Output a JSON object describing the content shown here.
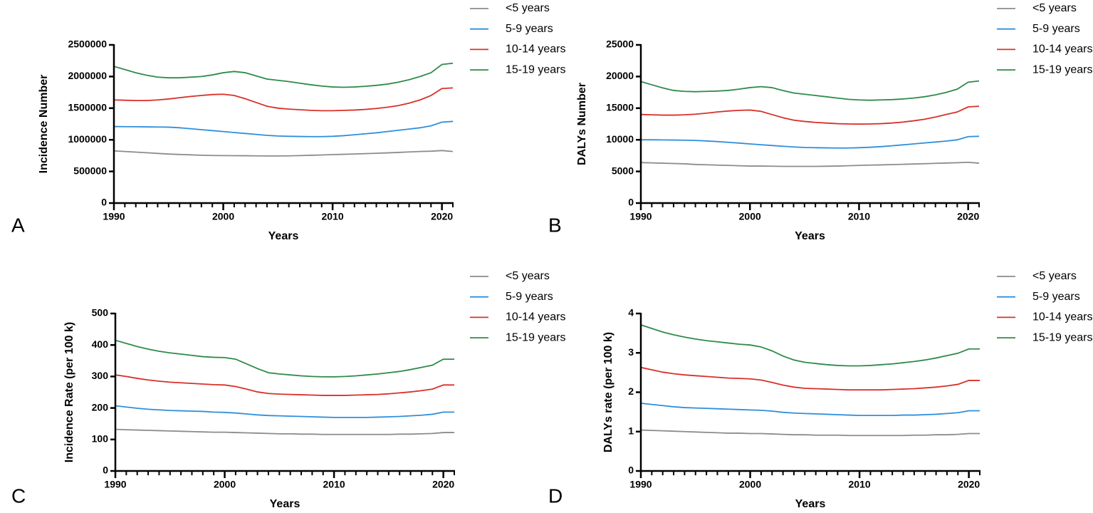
{
  "chart_data": [
    {
      "type": "line",
      "panel_label": "A",
      "y_label": "Incidence Number",
      "x_label": "Years",
      "x": [
        1990,
        1991,
        1992,
        1993,
        1994,
        1995,
        1996,
        1997,
        1998,
        1999,
        2000,
        2001,
        2002,
        2003,
        2004,
        2005,
        2006,
        2007,
        2008,
        2009,
        2010,
        2011,
        2012,
        2013,
        2014,
        2015,
        2016,
        2017,
        2018,
        2019,
        2020,
        2021
      ],
      "xlim": [
        1990,
        2021
      ],
      "xticks": [
        1990,
        2000,
        2010,
        2020
      ],
      "ylim": [
        0,
        2500000
      ],
      "yticks": [
        0,
        500000,
        1000000,
        1500000,
        2000000,
        2500000
      ],
      "series": [
        {
          "name": "<5 years",
          "color": "#8c8c8c",
          "values": [
            825000,
            815000,
            805000,
            795000,
            785000,
            775000,
            768000,
            762000,
            756000,
            752000,
            750000,
            749000,
            748000,
            746000,
            745000,
            745000,
            746000,
            750000,
            755000,
            760000,
            766000,
            771000,
            776000,
            781000,
            787000,
            793000,
            800000,
            808000,
            815000,
            820000,
            830000,
            815000
          ]
        },
        {
          "name": "5-9 years",
          "color": "#2f8fdb",
          "values": [
            1210000,
            1208000,
            1206000,
            1204000,
            1202000,
            1200000,
            1190000,
            1175000,
            1160000,
            1145000,
            1130000,
            1115000,
            1100000,
            1085000,
            1070000,
            1060000,
            1055000,
            1052000,
            1050000,
            1050000,
            1055000,
            1065000,
            1080000,
            1095000,
            1110000,
            1130000,
            1150000,
            1170000,
            1190000,
            1220000,
            1280000,
            1290000
          ]
        },
        {
          "name": "10-14 years",
          "color": "#d9302a",
          "values": [
            1630000,
            1625000,
            1620000,
            1620000,
            1630000,
            1645000,
            1665000,
            1685000,
            1700000,
            1715000,
            1720000,
            1700000,
            1650000,
            1590000,
            1530000,
            1500000,
            1485000,
            1475000,
            1465000,
            1460000,
            1460000,
            1465000,
            1470000,
            1480000,
            1495000,
            1515000,
            1540000,
            1580000,
            1630000,
            1700000,
            1810000,
            1820000
          ]
        },
        {
          "name": "15-19 years",
          "color": "#2e8b4a",
          "values": [
            2160000,
            2110000,
            2060000,
            2020000,
            1990000,
            1980000,
            1980000,
            1990000,
            2000000,
            2025000,
            2060000,
            2080000,
            2060000,
            2010000,
            1960000,
            1940000,
            1920000,
            1895000,
            1870000,
            1850000,
            1835000,
            1830000,
            1835000,
            1845000,
            1860000,
            1880000,
            1910000,
            1950000,
            2000000,
            2060000,
            2190000,
            2210000
          ]
        }
      ]
    },
    {
      "type": "line",
      "panel_label": "B",
      "y_label": "DALYs Number",
      "x_label": "Years",
      "x": [
        1990,
        1991,
        1992,
        1993,
        1994,
        1995,
        1996,
        1997,
        1998,
        1999,
        2000,
        2001,
        2002,
        2003,
        2004,
        2005,
        2006,
        2007,
        2008,
        2009,
        2010,
        2011,
        2012,
        2013,
        2014,
        2015,
        2016,
        2017,
        2018,
        2019,
        2020,
        2021
      ],
      "xlim": [
        1990,
        2021
      ],
      "xticks": [
        1990,
        2000,
        2010,
        2020
      ],
      "ylim": [
        0,
        25000
      ],
      "yticks": [
        0,
        5000,
        10000,
        15000,
        20000,
        25000
      ],
      "series": [
        {
          "name": "<5 years",
          "color": "#8c8c8c",
          "values": [
            6400,
            6350,
            6300,
            6250,
            6200,
            6100,
            6050,
            6000,
            5950,
            5900,
            5850,
            5850,
            5830,
            5800,
            5800,
            5800,
            5800,
            5820,
            5850,
            5900,
            5950,
            6000,
            6030,
            6080,
            6120,
            6170,
            6220,
            6280,
            6330,
            6380,
            6450,
            6300
          ]
        },
        {
          "name": "5-9 years",
          "color": "#2f8fdb",
          "values": [
            10000,
            10000,
            9980,
            9960,
            9940,
            9900,
            9820,
            9720,
            9600,
            9480,
            9350,
            9220,
            9100,
            8980,
            8870,
            8780,
            8750,
            8720,
            8700,
            8700,
            8750,
            8820,
            8920,
            9050,
            9200,
            9350,
            9500,
            9650,
            9800,
            10000,
            10500,
            10550
          ]
        },
        {
          "name": "10-14 years",
          "color": "#d9302a",
          "values": [
            14000,
            13950,
            13900,
            13900,
            13950,
            14050,
            14200,
            14400,
            14550,
            14650,
            14700,
            14500,
            14000,
            13500,
            13100,
            12900,
            12750,
            12650,
            12550,
            12500,
            12480,
            12500,
            12550,
            12650,
            12800,
            13000,
            13250,
            13600,
            14000,
            14400,
            15200,
            15300
          ]
        },
        {
          "name": "15-19 years",
          "color": "#2e8b4a",
          "values": [
            19200,
            18700,
            18200,
            17800,
            17650,
            17600,
            17650,
            17700,
            17800,
            18000,
            18250,
            18400,
            18250,
            17800,
            17400,
            17200,
            17000,
            16800,
            16600,
            16400,
            16300,
            16250,
            16300,
            16350,
            16450,
            16600,
            16800,
            17100,
            17500,
            18000,
            19100,
            19300
          ]
        }
      ]
    },
    {
      "type": "line",
      "panel_label": "C",
      "y_label": "Incidence Rate (per 100 k)",
      "x_label": "Years",
      "x": [
        1990,
        1991,
        1992,
        1993,
        1994,
        1995,
        1996,
        1997,
        1998,
        1999,
        2000,
        2001,
        2002,
        2003,
        2004,
        2005,
        2006,
        2007,
        2008,
        2009,
        2010,
        2011,
        2012,
        2013,
        2014,
        2015,
        2016,
        2017,
        2018,
        2019,
        2020,
        2021
      ],
      "xlim": [
        1990,
        2021
      ],
      "xticks": [
        1990,
        2000,
        2010,
        2020
      ],
      "ylim": [
        0,
        500
      ],
      "yticks": [
        0,
        100,
        200,
        300,
        400,
        500
      ],
      "series": [
        {
          "name": "<5 years",
          "color": "#8c8c8c",
          "values": [
            132,
            131,
            130,
            129,
            128,
            127,
            126,
            125,
            124,
            123,
            123,
            122,
            121,
            120,
            119,
            118,
            118,
            117,
            117,
            116,
            116,
            116,
            116,
            116,
            116,
            116,
            117,
            117,
            118,
            119,
            122,
            122
          ]
        },
        {
          "name": "5-9 years",
          "color": "#2f8fdb",
          "values": [
            207,
            203,
            199,
            196,
            194,
            192,
            191,
            190,
            189,
            187,
            186,
            184,
            181,
            178,
            176,
            175,
            174,
            173,
            172,
            171,
            170,
            170,
            170,
            170,
            171,
            172,
            173,
            175,
            177,
            180,
            187,
            187
          ]
        },
        {
          "name": "10-14 years",
          "color": "#d9302a",
          "values": [
            305,
            300,
            294,
            289,
            285,
            282,
            280,
            278,
            276,
            274,
            273,
            268,
            260,
            251,
            246,
            244,
            243,
            242,
            241,
            240,
            240,
            240,
            241,
            242,
            243,
            245,
            248,
            251,
            255,
            260,
            273,
            273
          ]
        },
        {
          "name": "15-19 years",
          "color": "#2e8b4a",
          "values": [
            415,
            405,
            395,
            387,
            380,
            375,
            371,
            367,
            363,
            361,
            360,
            355,
            340,
            325,
            312,
            308,
            305,
            302,
            300,
            299,
            299,
            300,
            302,
            305,
            308,
            312,
            316,
            322,
            329,
            336,
            355,
            355
          ]
        }
      ]
    },
    {
      "type": "line",
      "panel_label": "D",
      "y_label": "DALYs rate (per 100 k)",
      "x_label": "Years",
      "x": [
        1990,
        1991,
        1992,
        1993,
        1994,
        1995,
        1996,
        1997,
        1998,
        1999,
        2000,
        2001,
        2002,
        2003,
        2004,
        2005,
        2006,
        2007,
        2008,
        2009,
        2010,
        2011,
        2012,
        2013,
        2014,
        2015,
        2016,
        2017,
        2018,
        2019,
        2020,
        2021
      ],
      "xlim": [
        1990,
        2021
      ],
      "xticks": [
        1990,
        2000,
        2010,
        2020
      ],
      "ylim": [
        0,
        4
      ],
      "yticks": [
        0,
        1,
        2,
        3,
        4
      ],
      "series": [
        {
          "name": "<5 years",
          "color": "#8c8c8c",
          "values": [
            1.04,
            1.03,
            1.02,
            1.01,
            1.0,
            0.99,
            0.98,
            0.97,
            0.96,
            0.96,
            0.95,
            0.95,
            0.94,
            0.93,
            0.92,
            0.92,
            0.91,
            0.91,
            0.91,
            0.9,
            0.9,
            0.9,
            0.9,
            0.9,
            0.9,
            0.91,
            0.91,
            0.92,
            0.92,
            0.93,
            0.95,
            0.95
          ]
        },
        {
          "name": "5-9 years",
          "color": "#2f8fdb",
          "values": [
            1.72,
            1.69,
            1.66,
            1.63,
            1.61,
            1.6,
            1.59,
            1.58,
            1.57,
            1.56,
            1.55,
            1.54,
            1.52,
            1.49,
            1.47,
            1.46,
            1.45,
            1.44,
            1.43,
            1.42,
            1.41,
            1.41,
            1.41,
            1.41,
            1.42,
            1.42,
            1.43,
            1.44,
            1.46,
            1.48,
            1.53,
            1.53
          ]
        },
        {
          "name": "10-14 years",
          "color": "#d9302a",
          "values": [
            2.63,
            2.57,
            2.51,
            2.47,
            2.44,
            2.42,
            2.4,
            2.38,
            2.36,
            2.35,
            2.34,
            2.31,
            2.25,
            2.18,
            2.13,
            2.1,
            2.09,
            2.08,
            2.07,
            2.06,
            2.06,
            2.06,
            2.06,
            2.07,
            2.08,
            2.09,
            2.11,
            2.13,
            2.16,
            2.2,
            2.3,
            2.3
          ]
        },
        {
          "name": "15-19 years",
          "color": "#2e8b4a",
          "values": [
            3.71,
            3.62,
            3.53,
            3.46,
            3.4,
            3.35,
            3.31,
            3.28,
            3.25,
            3.22,
            3.2,
            3.15,
            3.05,
            2.92,
            2.82,
            2.76,
            2.73,
            2.7,
            2.68,
            2.67,
            2.67,
            2.68,
            2.7,
            2.72,
            2.75,
            2.78,
            2.82,
            2.87,
            2.93,
            2.99,
            3.1,
            3.1
          ]
        }
      ]
    }
  ]
}
